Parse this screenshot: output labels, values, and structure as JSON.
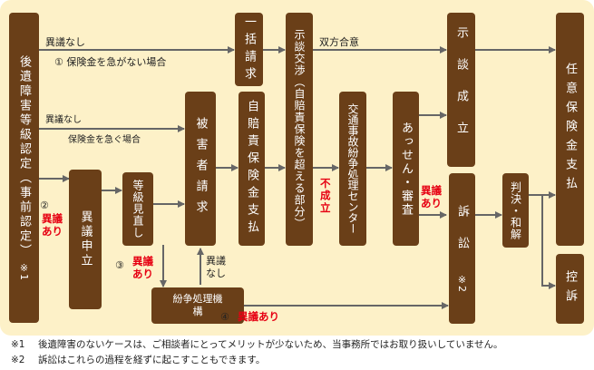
{
  "boxes": {
    "koui": "後遺障害等級認定（事前認定）",
    "koui_mark": "※1",
    "igi": "異議申立",
    "tokyu": "等級見直し",
    "funso": "紛争処理機構",
    "higaisha": "被害者請求",
    "ikkatsu": "一括請求",
    "jibai": "自賠責保険金支払",
    "jidan": "示談交渉（自賠責保険を超える部分）",
    "kotsu": "交通事故紛争処理センター",
    "assen": "あっせん・審査",
    "seiritsu": "示談成立",
    "sosho": "訴訟",
    "sosho_mark": "※2",
    "hanketsu": "判決・和解",
    "nini": "任意保険金支払",
    "koso": "控訴"
  },
  "labels": {
    "igi_nashi_1": "異議なし",
    "hoken_isoganai": "① 保険金を急がない場合",
    "igi_nashi_2": "異議なし",
    "hoken_isogu": "保険金を急ぐ場合",
    "num2": "②",
    "igi_ari_2": "異議あり",
    "num3": "③",
    "igi_ari_3": "異議あり",
    "igi_nashi_3": "異議なし",
    "num4": "④",
    "igi_ari_4": "異議あり",
    "soho": "双方合意",
    "fuseiritsu": "不成立",
    "igi_ari_5": "異議あり"
  },
  "notes": [
    {
      "mark": "※1",
      "text": "後遺障害のないケースは、ご相談者にとってメリットが少ないため、当事務所ではお取り扱いしていません。"
    },
    {
      "mark": "※2",
      "text": "訴訟はこれらの過程を経ずに起こすこともできます。"
    }
  ],
  "colors": {
    "box": "#6a3f18",
    "background": "#fdf1c8",
    "accent": "#e60012",
    "arrow": "#666666"
  }
}
